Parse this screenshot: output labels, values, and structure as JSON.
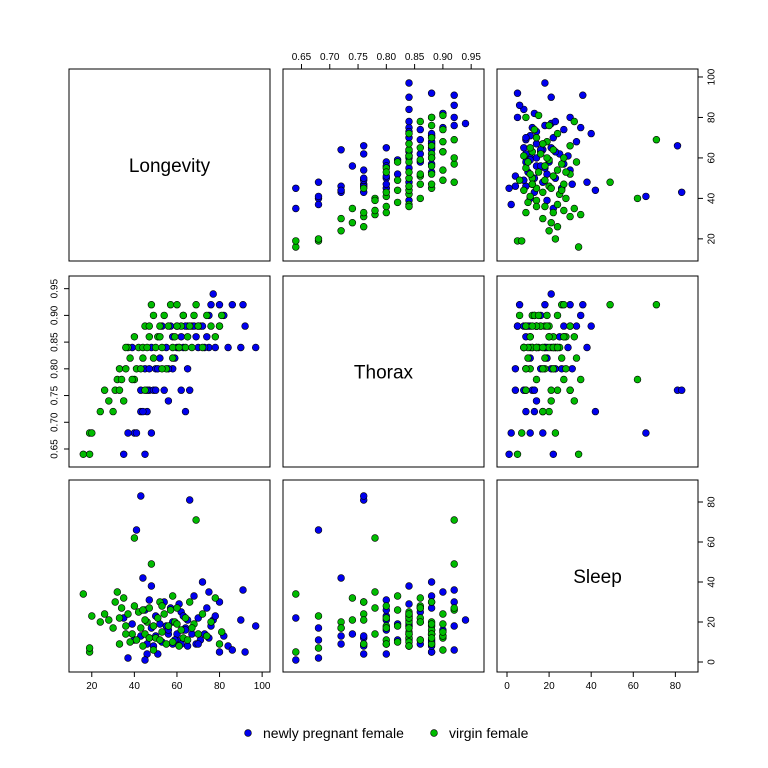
{
  "chart_data": {
    "type": "scatter-matrix",
    "variables": [
      "Longevity",
      "Thorax",
      "Sleep"
    ],
    "axis_ticks": {
      "Longevity": [
        "20",
        "40",
        "60",
        "80",
        "100"
      ],
      "Thorax": [
        "0.65",
        "0.70",
        "0.75",
        "0.80",
        "0.85",
        "0.90",
        "0.95"
      ],
      "Sleep": [
        "0",
        "20",
        "40",
        "60",
        "80"
      ]
    },
    "legend": {
      "position": "bottom",
      "entries": [
        {
          "name": "newly pregnant female",
          "color": "#0000ee"
        },
        {
          "name": "virgin female",
          "color": "#00bb00"
        }
      ]
    },
    "series": [
      {
        "name": "newly pregnant female",
        "color": "#0000ee",
        "points": [
          [
            35,
            0.64,
            22
          ],
          [
            40,
            0.68,
            11
          ],
          [
            37,
            0.68,
            2
          ],
          [
            43,
            0.72,
            13
          ],
          [
            47,
            0.76,
            12
          ],
          [
            46,
            0.76,
            4
          ],
          [
            45,
            0.64,
            1
          ],
          [
            46,
            0.72,
            9
          ],
          [
            48,
            0.68,
            17
          ],
          [
            50,
            0.8,
            23
          ],
          [
            52,
            0.82,
            19
          ],
          [
            54,
            0.76,
            30
          ],
          [
            56,
            0.74,
            14
          ],
          [
            58,
            0.8,
            9
          ],
          [
            60,
            0.84,
            11
          ],
          [
            62,
            0.86,
            25
          ],
          [
            62,
            0.76,
            9
          ],
          [
            64,
            0.72,
            17
          ],
          [
            65,
            0.8,
            21
          ],
          [
            66,
            0.76,
            81
          ],
          [
            67,
            0.88,
            14
          ],
          [
            68,
            0.88,
            33
          ],
          [
            70,
            0.84,
            22
          ],
          [
            71,
            0.88,
            11
          ],
          [
            72,
            0.88,
            40
          ],
          [
            74,
            0.86,
            27
          ],
          [
            75,
            0.9,
            35
          ],
          [
            75,
            0.84,
            12
          ],
          [
            76,
            0.92,
            18
          ],
          [
            77,
            0.94,
            21
          ],
          [
            78,
            0.84,
            23
          ],
          [
            80,
            0.92,
            30
          ],
          [
            80,
            0.88,
            5
          ],
          [
            82,
            0.9,
            13
          ],
          [
            84,
            0.84,
            8
          ],
          [
            86,
            0.92,
            6
          ],
          [
            90,
            0.84,
            21
          ],
          [
            91,
            0.92,
            36
          ],
          [
            92,
            0.88,
            5
          ],
          [
            97,
            0.84,
            18
          ],
          [
            63,
            0.9,
            16
          ],
          [
            55,
            0.84,
            18
          ],
          [
            57,
            0.88,
            27
          ],
          [
            45,
            0.8,
            26
          ],
          [
            44,
            0.72,
            42
          ],
          [
            41,
            0.68,
            66
          ],
          [
            51,
            0.8,
            4
          ],
          [
            60,
            0.88,
            14
          ],
          [
            48,
            0.84,
            38
          ],
          [
            49,
            0.76,
            8
          ],
          [
            56,
            0.8,
            16
          ],
          [
            58,
            0.86,
            20
          ],
          [
            61,
            0.84,
            29
          ],
          [
            63,
            0.84,
            23
          ],
          [
            69,
            0.86,
            9
          ],
          [
            73,
            0.84,
            14
          ],
          [
            65,
            0.88,
            8
          ],
          [
            70,
            0.88,
            9
          ],
          [
            59,
            0.82,
            11
          ],
          [
            43,
            0.76,
            83
          ],
          [
            39,
            0.84,
            19
          ],
          [
            50,
            0.76,
            13
          ],
          [
            53,
            0.88,
            10
          ],
          [
            47,
            0.8,
            31
          ],
          [
            64,
            0.88,
            16
          ]
        ]
      },
      {
        "name": "virgin female",
        "color": "#00bb00",
        "points": [
          [
            16,
            0.64,
            34
          ],
          [
            19,
            0.64,
            5
          ],
          [
            19,
            0.68,
            7
          ],
          [
            20,
            0.68,
            23
          ],
          [
            24,
            0.72,
            20
          ],
          [
            26,
            0.76,
            24
          ],
          [
            28,
            0.74,
            21
          ],
          [
            30,
            0.72,
            17
          ],
          [
            31,
            0.76,
            30
          ],
          [
            32,
            0.78,
            35
          ],
          [
            33,
            0.8,
            22
          ],
          [
            34,
            0.78,
            27
          ],
          [
            35,
            0.74,
            32
          ],
          [
            36,
            0.8,
            18
          ],
          [
            37,
            0.84,
            24
          ],
          [
            38,
            0.82,
            10
          ],
          [
            40,
            0.86,
            28
          ],
          [
            40,
            0.78,
            62
          ],
          [
            41,
            0.8,
            11
          ],
          [
            42,
            0.84,
            25
          ],
          [
            44,
            0.84,
            8
          ],
          [
            45,
            0.88,
            14
          ],
          [
            46,
            0.84,
            20
          ],
          [
            47,
            0.86,
            27
          ],
          [
            48,
            0.92,
            49
          ],
          [
            49,
            0.82,
            18
          ],
          [
            50,
            0.84,
            12
          ],
          [
            51,
            0.86,
            22
          ],
          [
            52,
            0.88,
            30
          ],
          [
            53,
            0.84,
            15
          ],
          [
            54,
            0.9,
            24
          ],
          [
            55,
            0.8,
            9
          ],
          [
            56,
            0.88,
            18
          ],
          [
            57,
            0.92,
            26
          ],
          [
            58,
            0.84,
            10
          ],
          [
            59,
            0.86,
            20
          ],
          [
            60,
            0.92,
            27
          ],
          [
            61,
            0.84,
            8
          ],
          [
            62,
            0.88,
            16
          ],
          [
            63,
            0.9,
            12
          ],
          [
            64,
            0.84,
            22
          ],
          [
            65,
            0.86,
            11
          ],
          [
            66,
            0.88,
            30
          ],
          [
            68,
            0.9,
            19
          ],
          [
            69,
            0.92,
            71
          ],
          [
            70,
            0.88,
            14
          ],
          [
            72,
            0.84,
            24
          ],
          [
            74,
            0.9,
            13
          ],
          [
            76,
            0.88,
            20
          ],
          [
            78,
            0.86,
            32
          ],
          [
            80,
            0.88,
            9
          ],
          [
            81,
            0.9,
            15
          ],
          [
            45,
            0.76,
            21
          ],
          [
            43,
            0.8,
            17
          ],
          [
            47,
            0.88,
            12
          ],
          [
            53,
            0.8,
            28
          ],
          [
            39,
            0.78,
            14
          ],
          [
            33,
            0.76,
            9
          ],
          [
            36,
            0.84,
            14
          ],
          [
            58,
            0.82,
            33
          ],
          [
            49,
            0.9,
            6
          ],
          [
            60,
            0.88,
            19
          ],
          [
            44,
            0.82,
            26
          ],
          [
            52,
            0.86,
            11
          ],
          [
            67,
            0.84,
            17
          ]
        ]
      }
    ]
  }
}
